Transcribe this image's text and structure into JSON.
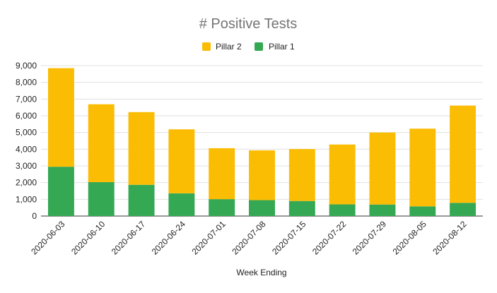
{
  "chart_data": {
    "type": "bar",
    "stacked": true,
    "title": "# Positive Tests",
    "xlabel": "Week Ending",
    "ylabel": "",
    "ylim": [
      0,
      9000
    ],
    "yticks": [
      "0",
      "1,000",
      "2,000",
      "3,000",
      "4,000",
      "5,000",
      "6,000",
      "7,000",
      "8,000",
      "9,000"
    ],
    "grid": true,
    "legend_position": "top",
    "categories": [
      "2020-06-03",
      "2020-06-10",
      "2020-06-17",
      "2020-06-24",
      "2020-07-01",
      "2020-07-08",
      "2020-07-15",
      "2020-07-22",
      "2020-07-29",
      "2020-08-05",
      "2020-08-12"
    ],
    "series": [
      {
        "name": "Pillar 1",
        "color": "#34a853",
        "values": [
          2950,
          2030,
          1870,
          1360,
          1010,
          950,
          900,
          700,
          690,
          580,
          790
        ]
      },
      {
        "name": "Pillar 2",
        "color": "#fbbc04",
        "values": [
          5900,
          4660,
          4350,
          3830,
          3050,
          2980,
          3110,
          3580,
          4310,
          4650,
          5820
        ]
      }
    ],
    "legend": [
      {
        "name": "Pillar 2",
        "color": "#fbbc04"
      },
      {
        "name": "Pillar 1",
        "color": "#34a853"
      }
    ]
  }
}
